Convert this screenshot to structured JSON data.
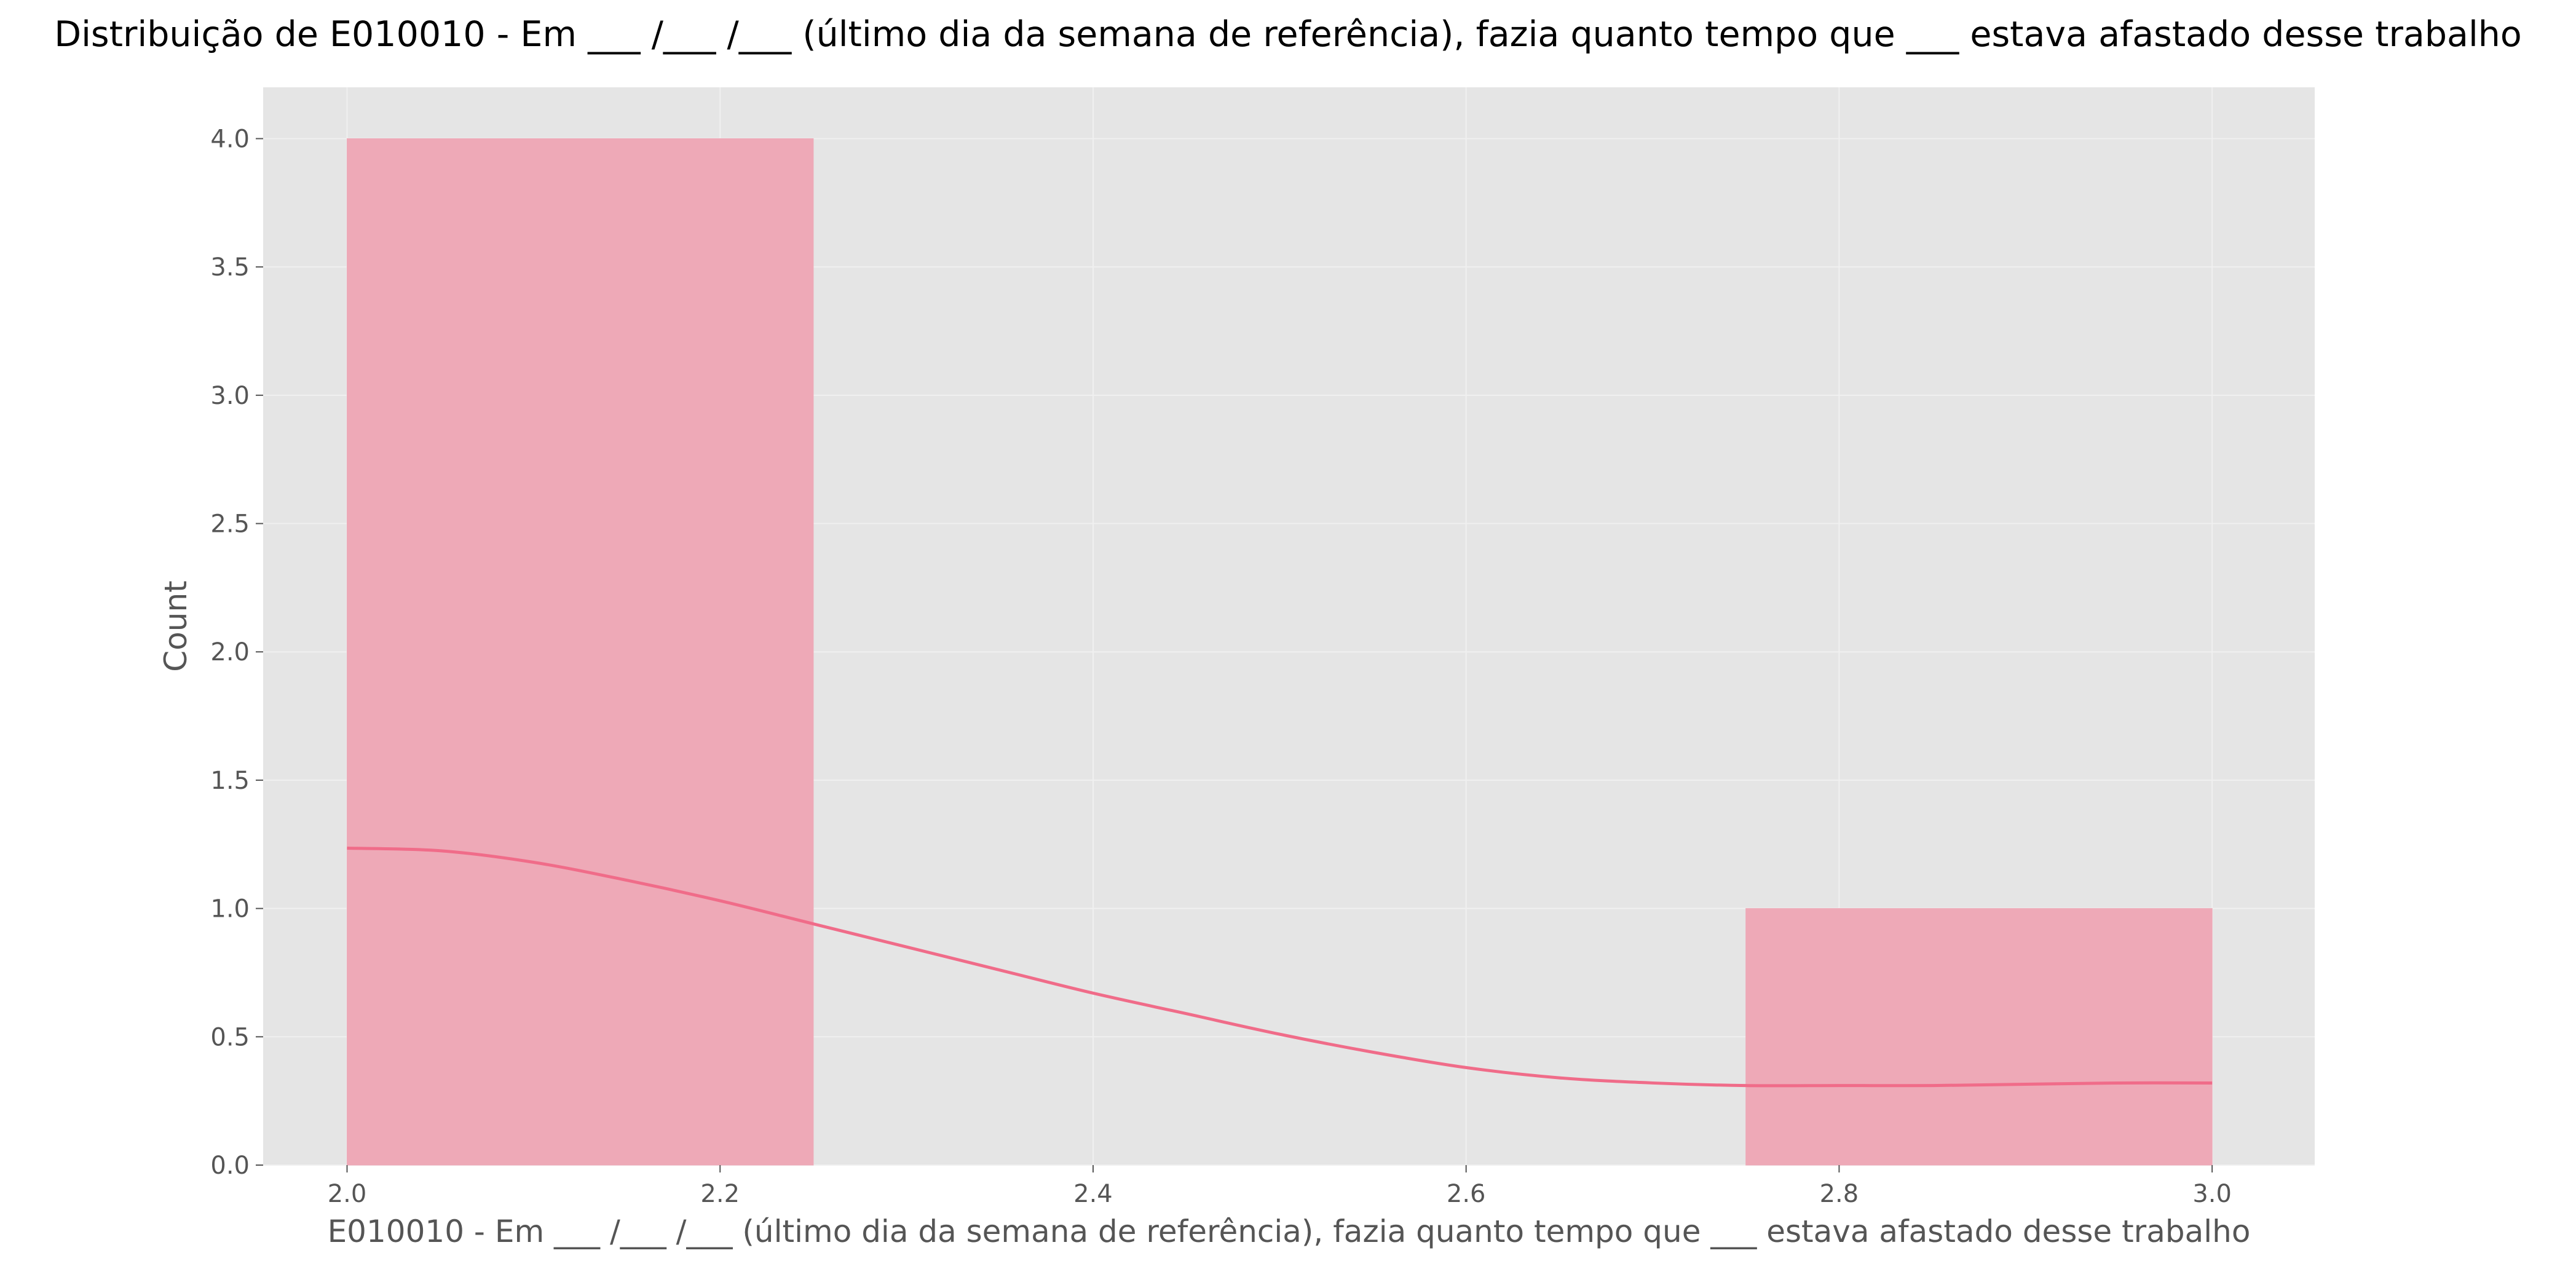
{
  "chart_data": {
    "type": "bar",
    "title": "Distribuição de E010010 -  Em ___ /___ /___ (último dia da semana de referência), fazia quanto tempo que ___ estava afastado desse trabalho",
    "xlabel": "E010010 -  Em ___ /___ /___ (último dia da semana de referência), fazia quanto tempo que ___ estava afastado desse trabalho",
    "ylabel": "Count",
    "xlim": [
      1.955,
      3.055
    ],
    "ylim": [
      0,
      4.2
    ],
    "grid": true,
    "x_ticks": [
      "2.0",
      "2.2",
      "2.4",
      "2.6",
      "2.8",
      "3.0"
    ],
    "y_ticks": [
      "0.0",
      "0.5",
      "1.0",
      "1.5",
      "2.0",
      "2.5",
      "3.0",
      "3.5",
      "4.0"
    ],
    "bins": [
      {
        "x0": 2.0,
        "x1": 2.25,
        "count": 4
      },
      {
        "x0": 2.25,
        "x1": 2.5,
        "count": 0
      },
      {
        "x0": 2.5,
        "x1": 2.75,
        "count": 0
      },
      {
        "x0": 2.75,
        "x1": 3.0,
        "count": 1
      }
    ],
    "kde": {
      "x": [
        2.0,
        2.05,
        2.1,
        2.15,
        2.2,
        2.25,
        2.3,
        2.35,
        2.4,
        2.45,
        2.5,
        2.55,
        2.6,
        2.65,
        2.7,
        2.75,
        2.8,
        2.85,
        2.9,
        2.95,
        3.0
      ],
      "y": [
        1.235,
        1.225,
        1.18,
        1.11,
        1.03,
        0.94,
        0.85,
        0.76,
        0.67,
        0.59,
        0.51,
        0.44,
        0.38,
        0.34,
        0.32,
        0.31,
        0.31,
        0.31,
        0.315,
        0.32,
        0.32
      ]
    },
    "colors": {
      "bar_fill": "#eea9b7",
      "kde_line": "#f06c89",
      "plot_background": "#e5e5e5",
      "grid": "#f0f0f0"
    }
  }
}
